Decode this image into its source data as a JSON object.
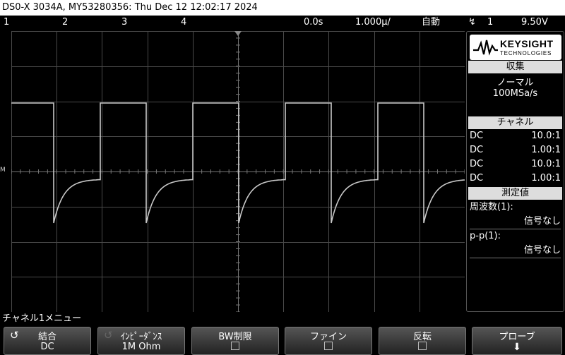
{
  "header": {
    "title": "DS0-X 3034A, MY53280356: Thu Dec 12 12:02:17 2024"
  },
  "status": {
    "ch1": "1",
    "ch2": "2",
    "ch3": "3",
    "ch4": "4",
    "time_offset": "0.0s",
    "timebase": "1.000µ/",
    "trigger_mode": "自動",
    "trigger_channel": "1",
    "trigger_level": "9.50V"
  },
  "panel": {
    "brand": "KEYSIGHT",
    "brand_sub": "TECHNOLOGIES",
    "acq_title": "収集",
    "acq_mode": "ノーマル",
    "acq_rate": "100MSa/s",
    "ch_title": "チャネル",
    "channels": [
      {
        "coupling": "DC",
        "probe": "10.0:1"
      },
      {
        "coupling": "DC",
        "probe": "1.00:1"
      },
      {
        "coupling": "DC",
        "probe": "10.0:1"
      },
      {
        "coupling": "DC",
        "probe": "1.00:1"
      }
    ],
    "meas_title": "測定値",
    "meas": [
      {
        "label": "周波数(1):",
        "value": "信号なし"
      },
      {
        "label": "p-p(1):",
        "value": "信号なし"
      }
    ]
  },
  "menu": {
    "title": "チャネル1メニュー",
    "keys": [
      {
        "title": "結合",
        "value": "DC"
      },
      {
        "title": "ｲﾝﾋﾟｰﾀﾞﾝｽ",
        "value": "1M Ohm"
      },
      {
        "title": "BW制限",
        "value": ""
      },
      {
        "title": "ファイン",
        "value": ""
      },
      {
        "title": "反転",
        "value": ""
      },
      {
        "title": "プローブ",
        "value": ""
      }
    ]
  },
  "ground_marker": "M",
  "colors": {
    "trace": "#c8c8c8",
    "grid": "#555555"
  }
}
